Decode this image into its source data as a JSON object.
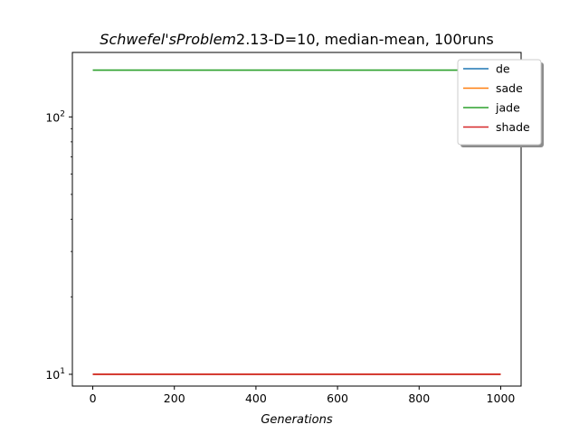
{
  "chart_data": {
    "type": "line",
    "title_italic": "Schwefel'sProblem",
    "title_rest": "2.13-D=10, median-mean, 100runs",
    "xlabel": "Generations",
    "ylabel": "",
    "x_range": [
      0,
      1000
    ],
    "xlim": [
      -50,
      1050
    ],
    "ylim": [
      9.0,
      178
    ],
    "yscale": "log",
    "grid": false,
    "legend_position": "top-right",
    "x_ticks": [
      0,
      200,
      400,
      600,
      800,
      1000
    ],
    "y_ticks": [
      {
        "value": 10,
        "base": "10",
        "exp": "1"
      },
      {
        "value": 100,
        "base": "10",
        "exp": "2"
      }
    ],
    "series": [
      {
        "name": "de",
        "color": "#1f77b4",
        "values": [
          10,
          10
        ]
      },
      {
        "name": "sade",
        "color": "#ff7f0e",
        "values": [
          10,
          10
        ]
      },
      {
        "name": "jade",
        "color": "#2ca02c",
        "values": [
          152,
          152
        ]
      },
      {
        "name": "shade",
        "color": "#d62728",
        "values": [
          10,
          10
        ]
      }
    ]
  }
}
